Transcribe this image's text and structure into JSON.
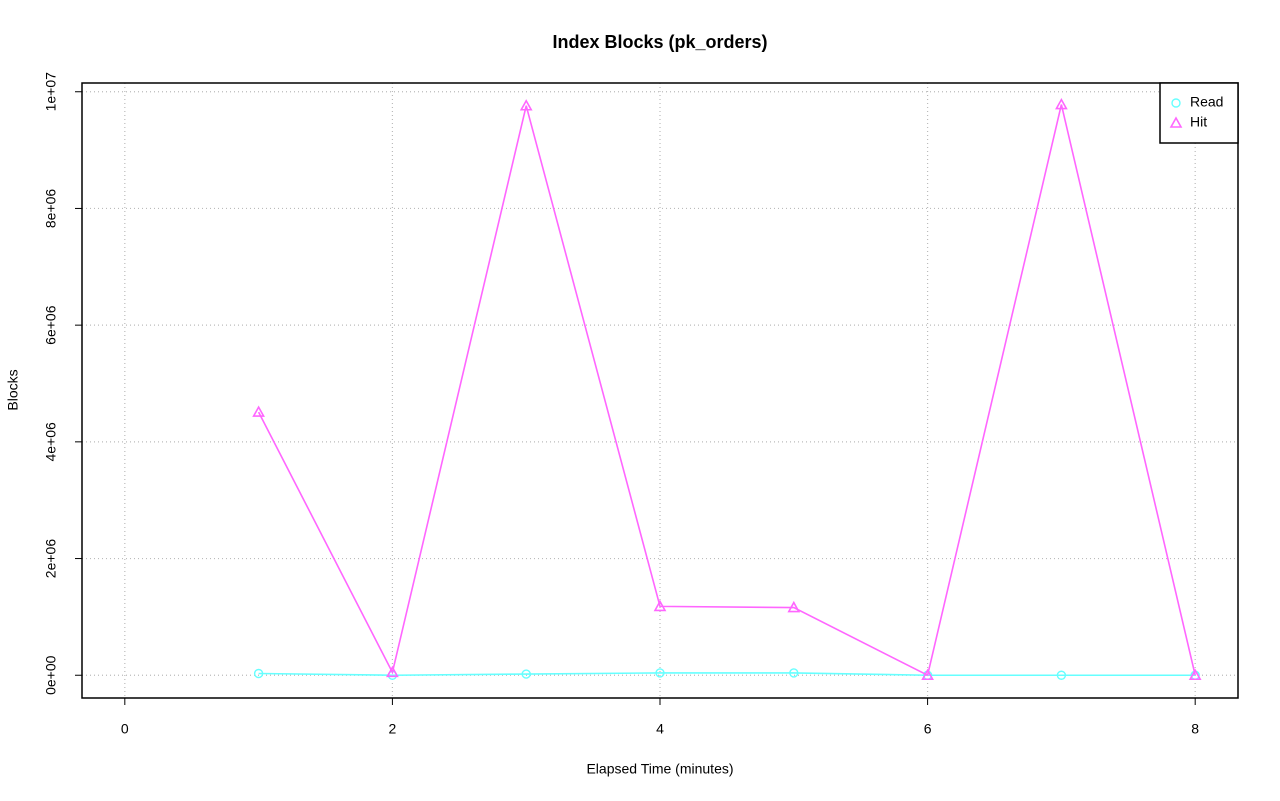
{
  "chart_data": {
    "type": "line",
    "title": "Index Blocks (pk_orders)",
    "x_label": "Elapsed Time (minutes)",
    "y_label": "Blocks",
    "x": [
      1,
      2,
      3,
      4,
      5,
      6,
      7,
      8
    ],
    "series": [
      {
        "name": "Read",
        "color": "#66ffff",
        "marker": "circle",
        "values": [
          30000,
          0,
          20000,
          40000,
          40000,
          0,
          0,
          0
        ]
      },
      {
        "name": "Hit",
        "color": "#ff66ff",
        "marker": "triangle",
        "values": [
          4510000,
          50000,
          9760000,
          1180000,
          1160000,
          0,
          9780000,
          0
        ]
      }
    ],
    "xlim": [
      -0.32,
      8.32
    ],
    "xticks": [
      0,
      2,
      4,
      6,
      8
    ],
    "ylim": [
      -390000,
      10150000
    ],
    "yticks": [
      {
        "value": 0,
        "label": "0e+00"
      },
      {
        "value": 2000000,
        "label": "2e+06"
      },
      {
        "value": 4000000,
        "label": "4e+06"
      },
      {
        "value": 6000000,
        "label": "6e+06"
      },
      {
        "value": 8000000,
        "label": "8e+06"
      },
      {
        "value": 10000000,
        "label": "1e+07"
      }
    ],
    "grid": true,
    "legend": "top-right"
  }
}
